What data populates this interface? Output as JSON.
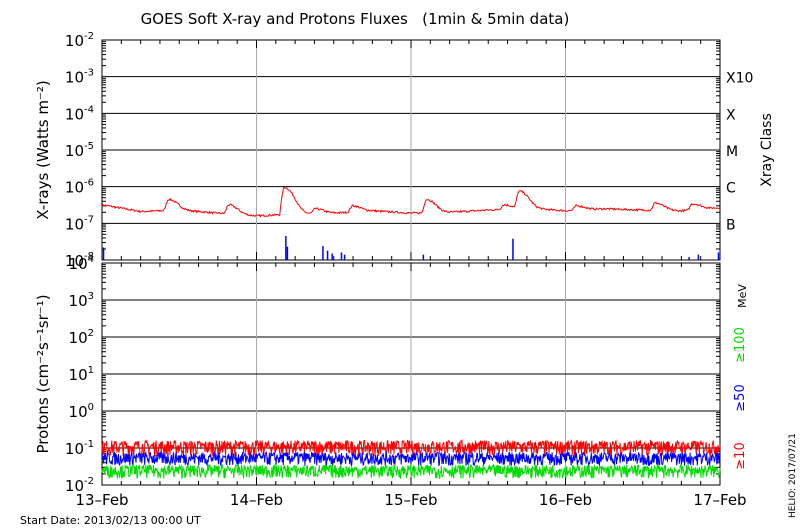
{
  "chart_data": [
    {
      "type": "line",
      "title": "GOES Soft X-ray and Protons Fluxes   (1min & 5min data)",
      "ylabel": "X-rays (Watts m⁻²)",
      "yscale": "log",
      "ylim": [
        1e-08,
        0.01
      ],
      "yticks": [
        {
          "base": "10",
          "exp": "-8"
        },
        {
          "base": "10",
          "exp": "-7"
        },
        {
          "base": "10",
          "exp": "-6"
        },
        {
          "base": "10",
          "exp": "-5"
        },
        {
          "base": "10",
          "exp": "-4"
        },
        {
          "base": "10",
          "exp": "-3"
        },
        {
          "base": "10",
          "exp": "-2"
        }
      ],
      "right_axis_title": "Xray Class",
      "class_labels": [
        {
          "label": "B",
          "value": 1e-07
        },
        {
          "label": "C",
          "value": 1e-06
        },
        {
          "label": "M",
          "value": 1e-05
        },
        {
          "label": "X",
          "value": 0.0001
        },
        {
          "label": "X10",
          "value": 0.001
        }
      ],
      "x": [
        0,
        0.25,
        0.5,
        0.75,
        1,
        1.25,
        1.5,
        1.75,
        2,
        2.25,
        2.5,
        2.75,
        3,
        3.25,
        3.5,
        3.75,
        4
      ],
      "series": [
        {
          "color": "#ff0000",
          "values": [
            3.2e-07,
            2.1e-07,
            2.3e-07,
            1.9e-07,
            1.6e-07,
            1.8e-07,
            1.9e-07,
            2.2e-07,
            1.9e-07,
            2e-07,
            2.3e-07,
            2.6e-07,
            2.2e-07,
            2.5e-07,
            2.3e-07,
            2.2e-07,
            2.7e-07
          ],
          "peaks": [
            [
              0.43,
              4.5e-07
            ],
            [
              0.82,
              3.2e-07
            ],
            [
              1.18,
              9.5e-07
            ],
            [
              1.38,
              2.5e-07
            ],
            [
              1.62,
              3e-07
            ],
            [
              2.1,
              4.5e-07
            ],
            [
              2.6,
              3.2e-07
            ],
            [
              2.7,
              7.5e-07
            ],
            [
              3.07,
              3e-07
            ],
            [
              3.58,
              3.6e-07
            ],
            [
              3.82,
              3.4e-07
            ]
          ]
        },
        {
          "color": "#0000ff",
          "spikes": [
            [
              0.01,
              2.2e-08
            ],
            [
              1.19,
              4.5e-08
            ],
            [
              1.2,
              2.3e-08
            ],
            [
              1.43,
              2.4e-08
            ],
            [
              1.46,
              1.8e-08
            ],
            [
              1.49,
              1.5e-08
            ],
            [
              1.55,
              1.6e-08
            ],
            [
              1.57,
              1.4e-08
            ],
            [
              2.08,
              1.4e-08
            ],
            [
              2.66,
              3.8e-08
            ],
            [
              3.8,
              1.2e-08
            ],
            [
              3.86,
              1.4e-08
            ],
            [
              3.99,
              1.6e-08
            ]
          ]
        }
      ]
    },
    {
      "type": "line",
      "ylabel": "Protons (cm⁻²s⁻¹sr⁻¹)",
      "yscale": "log",
      "ylim": [
        0.01,
        10000
      ],
      "yticks": [
        {
          "base": "10",
          "exp": "-2"
        },
        {
          "base": "10",
          "exp": "-1"
        },
        {
          "base": "10",
          "exp": "0"
        },
        {
          "base": "10",
          "exp": "1"
        },
        {
          "base": "10",
          "exp": "2"
        },
        {
          "base": "10",
          "exp": "3"
        },
        {
          "base": "10",
          "exp": "4"
        }
      ],
      "threshold": 10,
      "right_axis_unit": "MeV",
      "x": [
        0,
        1,
        2,
        3,
        4
      ],
      "series": [
        {
          "name": "≥10",
          "color": "#ff0000",
          "baseline": 0.11,
          "spread": 0.05
        },
        {
          "name": "≥50",
          "color": "#0000ff",
          "baseline": 0.055,
          "spread": 0.022
        },
        {
          "name": "≥100",
          "color": "#00dd00",
          "baseline": 0.025,
          "spread": 0.01
        }
      ],
      "xticks": [
        "13–Feb",
        "14–Feb",
        "15–Feb",
        "16–Feb",
        "17–Feb"
      ]
    }
  ],
  "footer": {
    "start_date": "Start Date: 2013/02/13 00:00 UT",
    "credit": "HELIO: 2017/07/21"
  }
}
